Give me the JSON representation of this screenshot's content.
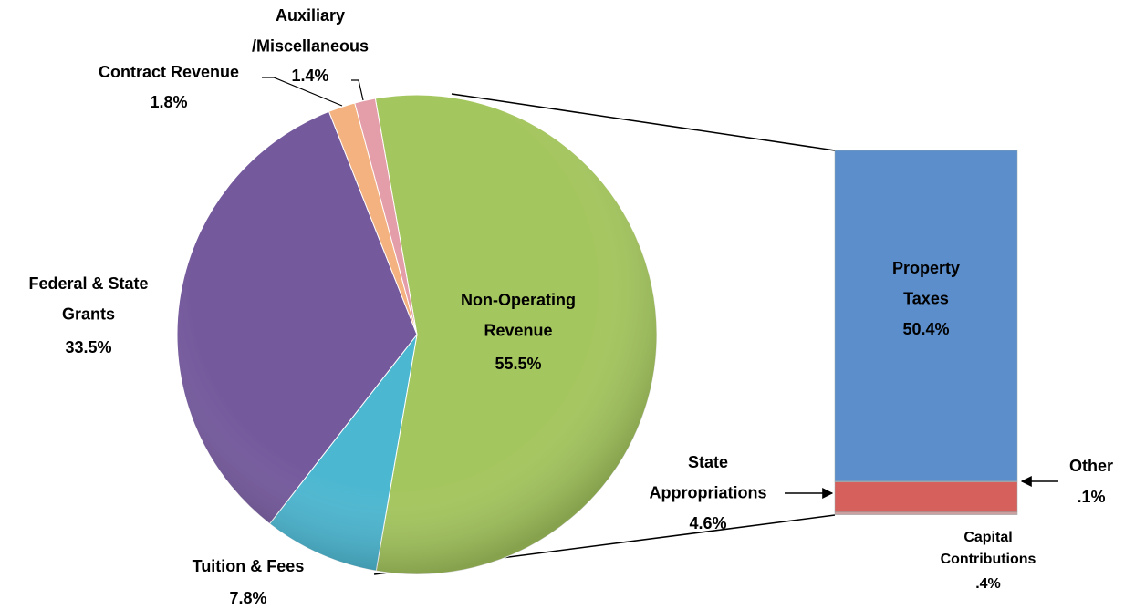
{
  "chart_data": {
    "type": "pie",
    "categories": [
      "Non-Operating\nRevenue",
      "Tuition & Fees",
      "Federal & State\nGrants",
      "Contract Revenue",
      "Auxiliary\n/Miscellaneous"
    ],
    "values": [
      55.5,
      7.8,
      33.5,
      1.8,
      1.4
    ],
    "value_labels": [
      "55.5%",
      "7.8%",
      "33.5%",
      "1.8%",
      "1.4%"
    ],
    "colors": [
      "#a4c65e",
      "#4cb7d1",
      "#74599c",
      "#f3b27f",
      "#e49ea9"
    ],
    "breakdown": {
      "categories": [
        "Property\nTaxes",
        "Other",
        "State\nAppropriations",
        "Capital\nContributions"
      ],
      "values": [
        50.4,
        0.1,
        4.6,
        0.4
      ],
      "value_labels": [
        "50.4%",
        ".1%",
        "4.6%",
        ".4%"
      ],
      "colors": [
        "#5b8ecb",
        "#9cb9dc",
        "#d6605b",
        "#c9a1a0"
      ]
    }
  }
}
